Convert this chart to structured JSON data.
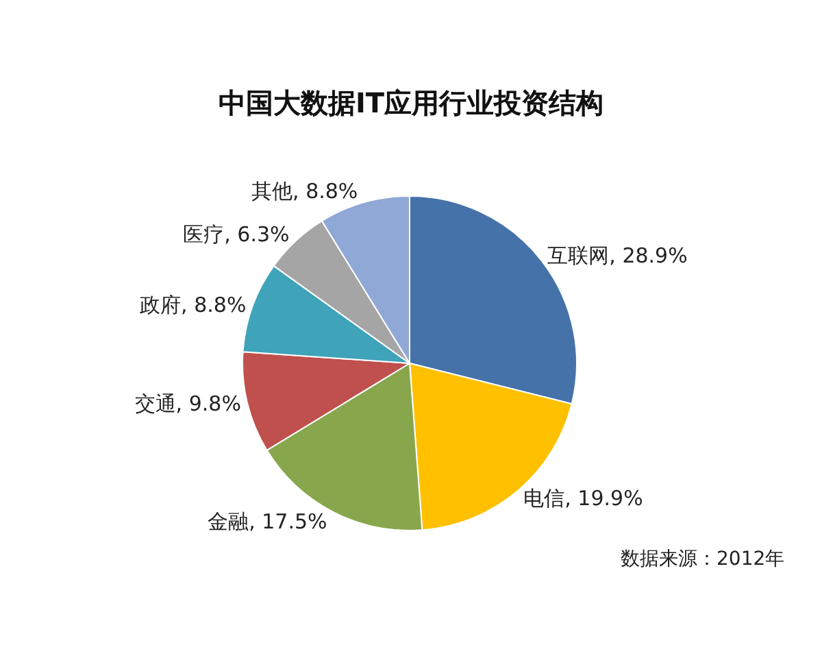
{
  "chart_data": {
    "type": "pie",
    "title": "中国大数据IT应用行业投资结构",
    "categories": [
      "互联网",
      "电信",
      "金融",
      "交通",
      "政府",
      "医疗",
      "其他"
    ],
    "values": [
      28.9,
      19.9,
      17.5,
      9.8,
      8.8,
      6.3,
      8.8
    ],
    "colors": [
      "#4672aa",
      "#ffc000",
      "#88a64c",
      "#c0504d",
      "#3fa3b9",
      "#a5a5a5",
      "#8fa8d6"
    ],
    "value_labels": [
      "28.9%",
      "19.9%",
      "17.5%",
      "9.8%",
      "8.8%",
      "6.3%",
      "8.8%"
    ],
    "annotations": [
      "数据来源：2012年"
    ]
  }
}
